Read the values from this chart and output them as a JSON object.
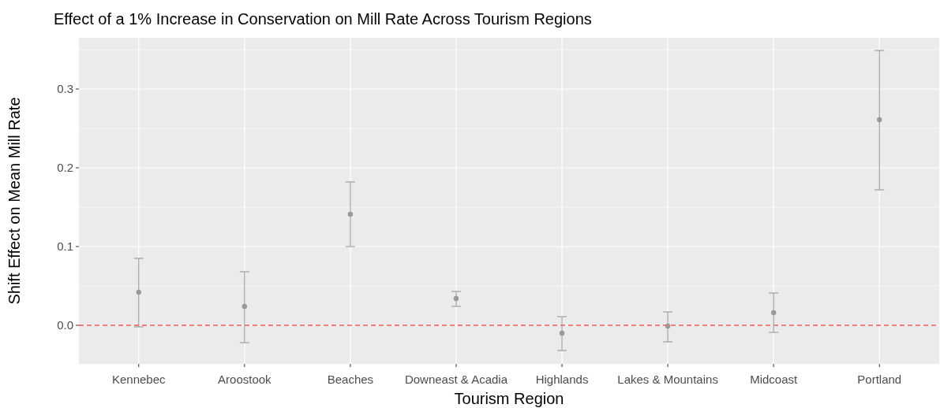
{
  "chart_data": {
    "type": "scatter",
    "title": "Effect of a 1% Increase in Conservation on Mill Rate Across Tourism Regions",
    "xlabel": "Tourism Region",
    "ylabel": "Shift Effect on Mean Mill Rate",
    "categories": [
      "Kennebec",
      "Aroostook",
      "Beaches",
      "Downeast & Acadia",
      "Highlands",
      "Lakes & Mountains",
      "Midcoast",
      "Portland"
    ],
    "series": [
      {
        "color": "#999999",
        "values": [
          0.042,
          0.024,
          0.141,
          0.034,
          -0.01,
          -0.001,
          0.016,
          0.261
        ],
        "errors": [
          [
            -0.002,
            0.085
          ],
          [
            -0.022,
            0.068
          ],
          [
            0.1,
            0.182
          ],
          [
            0.024,
            0.043
          ],
          [
            -0.032,
            0.011
          ],
          [
            -0.021,
            0.017
          ],
          [
            -0.009,
            0.041
          ],
          [
            0.172,
            0.349
          ]
        ]
      }
    ],
    "ylim": [
      -0.049,
      0.365
    ],
    "yticks": [
      {
        "value": 0,
        "label": "0.0"
      },
      0.1,
      0.2,
      0.3
    ],
    "grid": true,
    "marker": "circle",
    "ref_lines": [
      {
        "axis": "y",
        "value": 0,
        "color": "#ff0000",
        "line_style": "dashed"
      }
    ]
  }
}
